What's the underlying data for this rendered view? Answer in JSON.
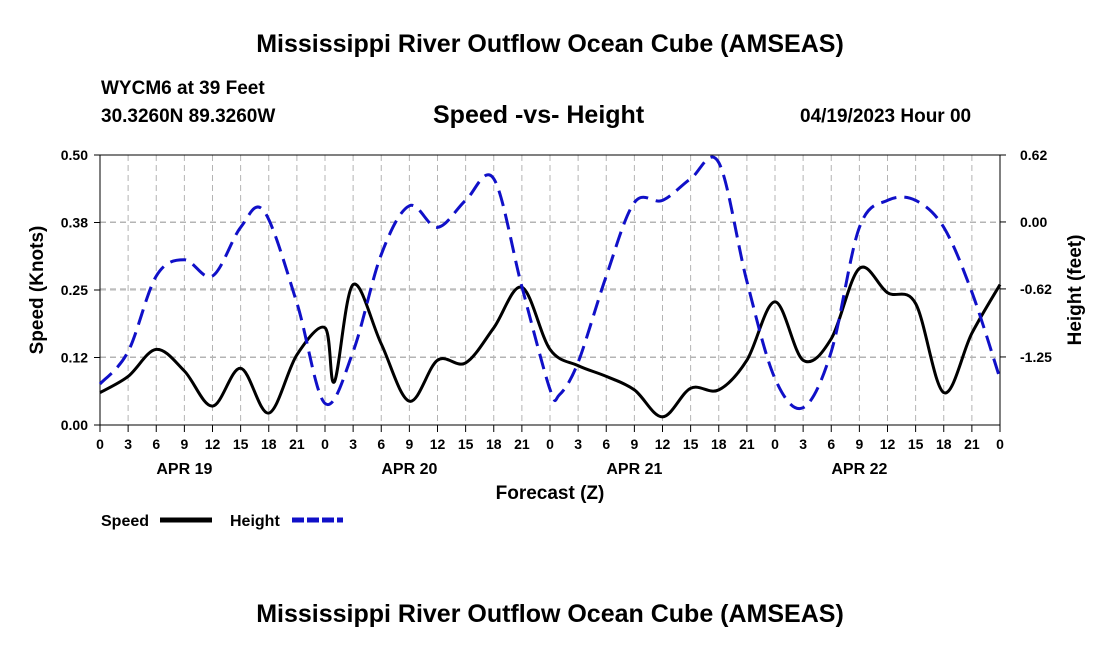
{
  "header": {
    "main_title": "Mississippi River Outflow Ocean Cube (AMSEAS)",
    "station": "WYCM6 at 39 Feet",
    "coords": "30.3260N  89.3260W",
    "chart_title": "Speed -vs- Height",
    "datetime": "04/19/2023 Hour 00"
  },
  "footer": {
    "title": "Mississippi River Outflow Ocean Cube (AMSEAS)"
  },
  "colors": {
    "speed": "#000000",
    "height": "#1010c8",
    "grid": "#b4b4b4"
  },
  "chart_data": {
    "type": "line",
    "title": "Speed -vs- Height",
    "xlabel": "Forecast (Z)",
    "ylabel": "Speed (Knots)",
    "y2label": "Height (feet)",
    "xlim": [
      0,
      96
    ],
    "ylim": [
      0,
      0.5
    ],
    "y2lim": [
      -1.88,
      0.62
    ],
    "x_tick_step_hours": 3,
    "x_tick_labels": [
      "0",
      "3",
      "6",
      "9",
      "12",
      "15",
      "18",
      "21",
      "0",
      "3",
      "6",
      "9",
      "12",
      "15",
      "18",
      "21",
      "0",
      "3",
      "6",
      "9",
      "12",
      "15",
      "18",
      "21",
      "0",
      "3",
      "6",
      "9",
      "12",
      "15",
      "18",
      "21",
      "0"
    ],
    "y_ticks": [
      "0.50",
      "0.38",
      "0.25",
      "0.12",
      "0.00"
    ],
    "y_tick_values": [
      0.5,
      0.375,
      0.25,
      0.125,
      0
    ],
    "y2_ticks": [
      "0.62",
      "0.00",
      "-0.62",
      "-1.25"
    ],
    "y2_tick_values": [
      0.62,
      0,
      -0.62,
      -1.25
    ],
    "day_labels": [
      {
        "label": "APR 19",
        "hour": 9
      },
      {
        "label": "APR 20",
        "hour": 33
      },
      {
        "label": "APR 21",
        "hour": 57
      },
      {
        "label": "APR 22",
        "hour": 81
      }
    ],
    "legend": [
      {
        "name": "Speed",
        "style": "solid"
      },
      {
        "name": "Height",
        "style": "dashed"
      }
    ],
    "series": [
      {
        "name": "Speed",
        "axis": "left",
        "x": [
          0,
          3,
          6,
          9,
          12,
          15,
          18,
          21,
          24,
          25,
          27,
          30,
          33,
          36,
          39,
          42,
          45,
          48,
          51,
          54,
          57,
          60,
          63,
          66,
          69,
          72,
          75,
          78,
          81,
          84,
          87,
          90,
          93,
          96
        ],
        "values": [
          0.06,
          0.09,
          0.14,
          0.1,
          0.035,
          0.105,
          0.022,
          0.13,
          0.18,
          0.08,
          0.26,
          0.15,
          0.044,
          0.12,
          0.115,
          0.18,
          0.255,
          0.14,
          0.11,
          0.09,
          0.065,
          0.015,
          0.068,
          0.065,
          0.12,
          0.228,
          0.12,
          0.16,
          0.29,
          0.245,
          0.225,
          0.06,
          0.17,
          0.26
        ]
      },
      {
        "name": "Height",
        "axis": "right",
        "x": [
          0,
          3,
          6,
          9,
          12,
          15,
          17.5,
          21,
          24,
          27,
          30,
          33,
          36,
          39,
          42,
          45,
          48,
          49,
          51,
          54,
          57,
          60,
          63,
          66,
          69,
          72,
          75,
          78,
          81,
          84,
          87,
          90,
          93,
          96
        ],
        "values": [
          -1.5,
          -1.2,
          -0.5,
          -0.35,
          -0.5,
          -0.05,
          0.1,
          -0.75,
          -1.68,
          -1.2,
          -0.3,
          0.15,
          -0.05,
          0.2,
          0.4,
          -0.6,
          -1.55,
          -1.6,
          -1.3,
          -0.5,
          0.18,
          0.2,
          0.4,
          0.55,
          -0.55,
          -1.45,
          -1.72,
          -1.2,
          -0.05,
          0.2,
          0.2,
          -0.05,
          -0.65,
          -1.45
        ]
      }
    ]
  }
}
